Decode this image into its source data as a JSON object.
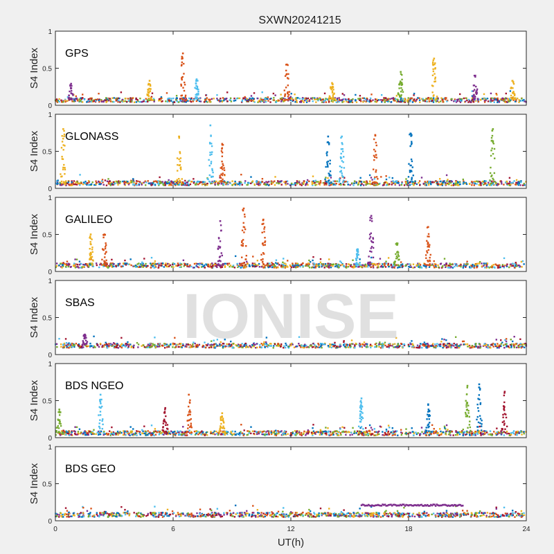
{
  "chart_data": {
    "type": "scatter",
    "title": "SXWN20241215",
    "xlabel": "UT(h)",
    "xlim": [
      0,
      24
    ],
    "xticks": [
      "0",
      "6",
      "12",
      "18",
      "24"
    ],
    "watermark": "IONISE",
    "grid": false,
    "colors": [
      "#0072BD",
      "#D95319",
      "#EDB120",
      "#7E2F8E",
      "#77AC30",
      "#4DBEEE",
      "#A2142F"
    ],
    "panels": [
      {
        "label": "GPS",
        "ylabel": "S4 Index",
        "ylim": [
          0,
          1
        ],
        "yticks": [
          "0",
          "0.5",
          "1"
        ],
        "base_level": 0.07,
        "spikes": [
          {
            "x": 6.5,
            "y": 0.7,
            "color": 1
          },
          {
            "x": 7.2,
            "y": 0.35,
            "color": 5
          },
          {
            "x": 4.8,
            "y": 0.33,
            "color": 2
          },
          {
            "x": 0.8,
            "y": 0.29,
            "color": 3
          },
          {
            "x": 11.8,
            "y": 0.55,
            "color": 1
          },
          {
            "x": 14.1,
            "y": 0.3,
            "color": 2
          },
          {
            "x": 17.6,
            "y": 0.45,
            "color": 4
          },
          {
            "x": 19.3,
            "y": 0.63,
            "color": 2
          },
          {
            "x": 21.4,
            "y": 0.4,
            "color": 3
          },
          {
            "x": 23.3,
            "y": 0.33,
            "color": 2
          }
        ]
      },
      {
        "label": "GLONASS",
        "ylabel": "S4 Index",
        "ylim": [
          0,
          1
        ],
        "yticks": [
          "0",
          "0.5",
          "1"
        ],
        "base_level": 0.07,
        "spikes": [
          {
            "x": 0.4,
            "y": 0.8,
            "color": 2
          },
          {
            "x": 6.3,
            "y": 0.7,
            "color": 2
          },
          {
            "x": 7.9,
            "y": 0.85,
            "color": 5
          },
          {
            "x": 8.5,
            "y": 0.6,
            "color": 1
          },
          {
            "x": 13.9,
            "y": 0.7,
            "color": 0
          },
          {
            "x": 14.6,
            "y": 0.7,
            "color": 5
          },
          {
            "x": 16.3,
            "y": 0.72,
            "color": 1
          },
          {
            "x": 18.1,
            "y": 0.74,
            "color": 0
          },
          {
            "x": 22.3,
            "y": 0.8,
            "color": 4
          }
        ]
      },
      {
        "label": "GALILEO",
        "ylabel": "S4 Index",
        "ylim": [
          0,
          1
        ],
        "yticks": [
          "0",
          "0.5",
          "1"
        ],
        "base_level": 0.08,
        "spikes": [
          {
            "x": 1.8,
            "y": 0.5,
            "color": 2
          },
          {
            "x": 2.5,
            "y": 0.5,
            "color": 1
          },
          {
            "x": 8.4,
            "y": 0.68,
            "color": 3
          },
          {
            "x": 9.6,
            "y": 0.85,
            "color": 1
          },
          {
            "x": 10.6,
            "y": 0.7,
            "color": 1
          },
          {
            "x": 16.1,
            "y": 0.75,
            "color": 3
          },
          {
            "x": 17.4,
            "y": 0.38,
            "color": 4
          },
          {
            "x": 19.0,
            "y": 0.6,
            "color": 1
          },
          {
            "x": 15.4,
            "y": 0.3,
            "color": 5
          }
        ]
      },
      {
        "label": "SBAS",
        "ylabel": "S4 Index",
        "ylim": [
          0,
          1
        ],
        "yticks": [
          "0",
          "0.5",
          "1"
        ],
        "base_level": 0.12,
        "spikes": [
          {
            "x": 1.5,
            "y": 0.27,
            "color": 3
          }
        ]
      },
      {
        "label": "BDS NGEO",
        "ylabel": "S4 Index",
        "ylim": [
          0,
          1
        ],
        "yticks": [
          "0",
          "0.5",
          "1"
        ],
        "base_level": 0.06,
        "spikes": [
          {
            "x": 0.2,
            "y": 0.38,
            "color": 4
          },
          {
            "x": 2.3,
            "y": 0.58,
            "color": 5
          },
          {
            "x": 6.8,
            "y": 0.58,
            "color": 1
          },
          {
            "x": 5.6,
            "y": 0.4,
            "color": 6
          },
          {
            "x": 8.5,
            "y": 0.33,
            "color": 2
          },
          {
            "x": 15.6,
            "y": 0.53,
            "color": 5
          },
          {
            "x": 19.0,
            "y": 0.45,
            "color": 0
          },
          {
            "x": 21.0,
            "y": 0.7,
            "color": 4
          },
          {
            "x": 21.6,
            "y": 0.72,
            "color": 0
          },
          {
            "x": 22.9,
            "y": 0.62,
            "color": 6
          }
        ]
      },
      {
        "label": "BDS GEO",
        "ylabel": "S4 Index",
        "ylim": [
          0,
          1
        ],
        "yticks": [
          "0",
          "0.5",
          "1"
        ],
        "base_level": 0.08,
        "spikes": [],
        "segments": [
          {
            "x0": 15.6,
            "x1": 20.8,
            "y": 0.21,
            "color": 3
          }
        ]
      }
    ]
  }
}
